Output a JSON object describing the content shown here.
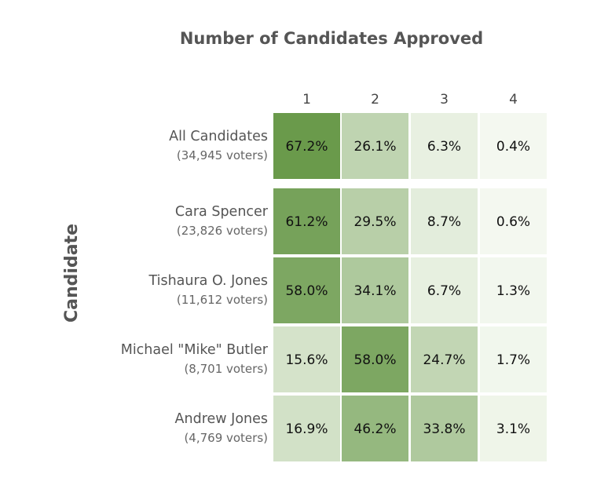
{
  "chart_data": {
    "type": "heatmap",
    "title": "Number of Candidates Approved",
    "ylabel": "Candidate",
    "xlabel": "",
    "columns": [
      "1",
      "2",
      "3",
      "4"
    ],
    "rows": [
      {
        "name": "All Candidates",
        "subtitle": "(34,945 voters)",
        "values": [
          67.2,
          26.1,
          6.3,
          0.4
        ],
        "labels": [
          "67.2%",
          "26.1%",
          "6.3%",
          "0.4%"
        ]
      },
      {
        "name": "Cara Spencer",
        "subtitle": "(23,826 voters)",
        "values": [
          61.2,
          29.5,
          8.7,
          0.6
        ],
        "labels": [
          "61.2%",
          "29.5%",
          "8.7%",
          "0.6%"
        ]
      },
      {
        "name": "Tishaura O. Jones",
        "subtitle": "(11,612 voters)",
        "values": [
          58.0,
          34.1,
          6.7,
          1.3
        ],
        "labels": [
          "58.0%",
          "34.1%",
          "6.7%",
          "1.3%"
        ]
      },
      {
        "name": "Michael \"Mike\" Butler",
        "subtitle": "(8,701 voters)",
        "values": [
          15.6,
          58.0,
          24.7,
          1.7
        ],
        "labels": [
          "15.6%",
          "58.0%",
          "24.7%",
          "1.7%"
        ]
      },
      {
        "name": "Andrew Jones",
        "subtitle": "(4,769 voters)",
        "values": [
          16.9,
          46.2,
          33.8,
          3.1
        ],
        "labels": [
          "16.9%",
          "46.2%",
          "33.8%",
          "3.1%"
        ]
      }
    ],
    "color_low": "#f5f9f1",
    "color_high": "#6a9a4b",
    "value_min": 0,
    "value_max": 67.2
  }
}
